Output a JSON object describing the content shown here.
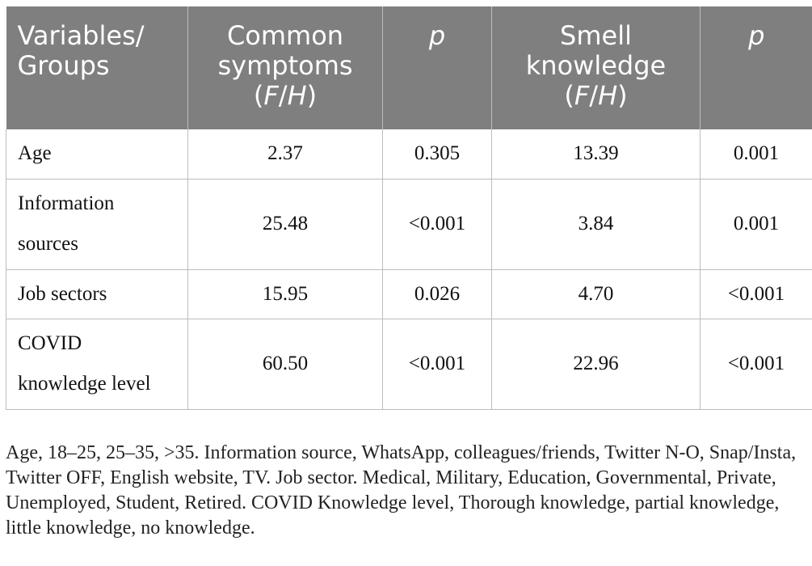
{
  "table": {
    "headers": [
      {
        "text": "Variables/\nGroups"
      },
      {
        "text": "Common\nsymptoms\n",
        "suffix_italic_f": "F",
        "suffix_sep": "/",
        "suffix_italic_h": "H"
      },
      {
        "text": "p"
      },
      {
        "text": "Smell\nknowledge\n",
        "suffix_italic_f": "F",
        "suffix_sep": "/",
        "suffix_italic_h": "H"
      },
      {
        "text": "p"
      }
    ],
    "header_labels": {
      "col1_line1": "Variables/",
      "col1_line2": "Groups",
      "col2_line1": "Common",
      "col2_line2": "symptoms",
      "col3": "p",
      "col4_line1": "Smell",
      "col4_line2": "knowledge",
      "col5": "p",
      "fh_f": "F",
      "fh_sep": "/",
      "fh_h": "H",
      "paren_open": "(",
      "paren_close": ")"
    },
    "rows": [
      {
        "label": "Age",
        "common": "2.37",
        "p1": "0.305",
        "smell": "13.39",
        "p2": "0.001"
      },
      {
        "label": "Information sources",
        "common": "25.48",
        "p1": "<0.001",
        "smell": "3.84",
        "p2": "0.001"
      },
      {
        "label": "Job sectors",
        "common": "15.95",
        "p1": "0.026",
        "smell": "4.70",
        "p2": "<0.001"
      },
      {
        "label": "COVID knowledge level",
        "common": "60.50",
        "p1": "<0.001",
        "smell": "22.96",
        "p2": "<0.001"
      }
    ]
  },
  "footnote": "Age, 18–25, 25–35, >35. Information source, WhatsApp, colleagues/friends, Twitter N-O, Snap/Insta, Twitter OFF, English website, TV. Job sector. Medical, Military, Education, Governmental, Private, Unemployed, Student, Retired. COVID Knowledge level, Thorough knowledge, partial knowledge, little knowledge, no knowledge.",
  "colors": {
    "header_bg": "#7f7f7f",
    "header_text": "#ffffff",
    "grid": "#bdbdbd"
  }
}
